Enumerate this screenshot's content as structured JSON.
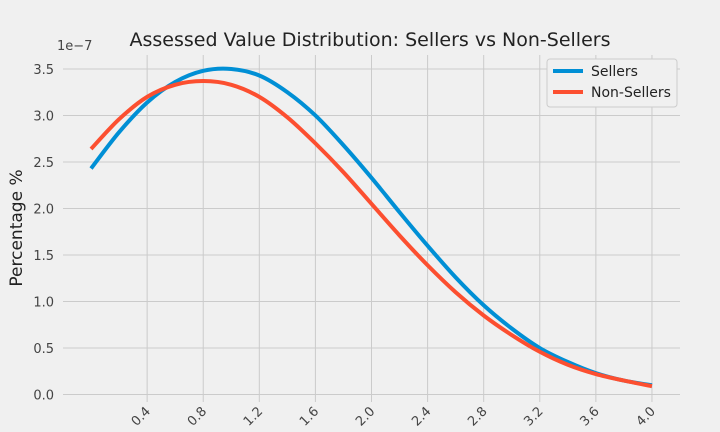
{
  "chart_data": {
    "type": "line",
    "title": "Assessed Value Distribution: Sellers vs Non-Sellers",
    "xlabel": "",
    "ylabel": "Percentage %",
    "y_offset_label": "1e−7",
    "x_ticks": [
      "0.4",
      "0.8",
      "1.2",
      "1.6",
      "2.0",
      "2.4",
      "2.8",
      "3.2",
      "3.6",
      "4.0"
    ],
    "y_ticks": [
      "0.0",
      "0.5",
      "1.0",
      "1.5",
      "2.0",
      "2.5",
      "3.0",
      "3.5"
    ],
    "xlim": [
      -0.2,
      4.2
    ],
    "ylim": [
      -0.08,
      3.65
    ],
    "grid": true,
    "legend_position": "top-right",
    "series": [
      {
        "name": "Sellers",
        "color": "#008fd5",
        "x": [
          0.0,
          0.2,
          0.4,
          0.6,
          0.8,
          1.0,
          1.2,
          1.4,
          1.6,
          1.8,
          2.0,
          2.2,
          2.4,
          2.6,
          2.8,
          3.0,
          3.2,
          3.4,
          3.6,
          3.8,
          4.0
        ],
        "y": [
          2.43,
          2.82,
          3.14,
          3.36,
          3.48,
          3.5,
          3.43,
          3.25,
          3.0,
          2.68,
          2.33,
          1.96,
          1.6,
          1.26,
          0.96,
          0.71,
          0.5,
          0.35,
          0.23,
          0.15,
          0.1
        ]
      },
      {
        "name": "Non-Sellers",
        "color": "#fc4f30",
        "x": [
          0.0,
          0.2,
          0.4,
          0.6,
          0.8,
          1.0,
          1.2,
          1.4,
          1.6,
          1.8,
          2.0,
          2.2,
          2.4,
          2.6,
          2.8,
          3.0,
          3.2,
          3.4,
          3.6,
          3.8,
          4.0
        ],
        "y": [
          2.64,
          2.96,
          3.2,
          3.33,
          3.37,
          3.33,
          3.2,
          2.98,
          2.7,
          2.39,
          2.05,
          1.71,
          1.39,
          1.1,
          0.85,
          0.64,
          0.46,
          0.32,
          0.22,
          0.15,
          0.09
        ]
      }
    ]
  }
}
